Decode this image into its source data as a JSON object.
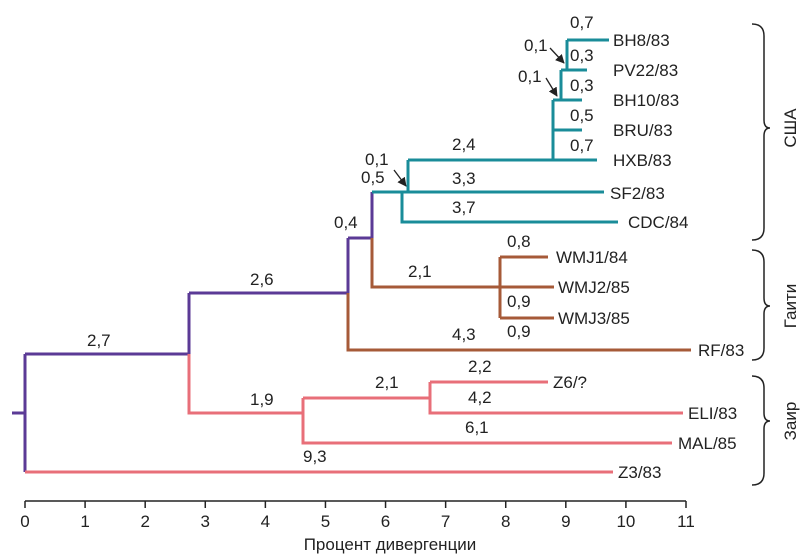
{
  "colors": {
    "purple": "#5b3a96",
    "teal": "#1a8c99",
    "brown": "#a65a38",
    "pink": "#e86f79",
    "axis": "#222222"
  },
  "axis": {
    "label": "Процент дивергенции",
    "ticks": [
      "0",
      "1",
      "2",
      "3",
      "4",
      "5",
      "6",
      "7",
      "8",
      "9",
      "10",
      "11"
    ]
  },
  "groups": [
    {
      "label": "США"
    },
    {
      "label": "Гаити"
    },
    {
      "label": "Заир"
    }
  ],
  "taxa": [
    {
      "name": "BH8/83",
      "color": "teal"
    },
    {
      "name": "PV22/83",
      "color": "teal"
    },
    {
      "name": "BH10/83",
      "color": "teal"
    },
    {
      "name": "BRU/83",
      "color": "teal"
    },
    {
      "name": "HXB/83",
      "color": "teal"
    },
    {
      "name": "SF2/83",
      "color": "teal"
    },
    {
      "name": "CDC/84",
      "color": "teal"
    },
    {
      "name": "WMJ1/84",
      "color": "brown"
    },
    {
      "name": "WMJ2/85",
      "color": "brown"
    },
    {
      "name": "WMJ3/85",
      "color": "brown"
    },
    {
      "name": "RF/83",
      "color": "brown"
    },
    {
      "name": "Z6/?",
      "color": "pink"
    },
    {
      "name": "ELI/83",
      "color": "pink"
    },
    {
      "name": "MAL/85",
      "color": "pink"
    },
    {
      "name": "Z3/83",
      "color": "pink"
    }
  ],
  "branch_labels": {
    "root_top": "2,7",
    "haiti_usa_stem": "2,6",
    "usa_haiti_split": "0,4",
    "usa_stem": "0,5",
    "usa_inner": "0,1",
    "bh_clade": "2,4",
    "sf2": "3,3",
    "cdc": "3,7",
    "bh_inner1": "0,1",
    "bh_inner2": "0,1",
    "bh8": "0,7",
    "pv22": "0,3",
    "bh10": "0,3",
    "bru": "0,5",
    "hxb": "0,7",
    "wmj_stem": "2,1",
    "wmj1": "0,8",
    "wmj2": "0,9",
    "wmj3": "0,9",
    "rf": "4,3",
    "zaire_stem": "1,9",
    "z6_eli_stem": "2,1",
    "z6": "2,2",
    "eli": "4,2",
    "mal": "6,1",
    "z3": "9,3"
  }
}
